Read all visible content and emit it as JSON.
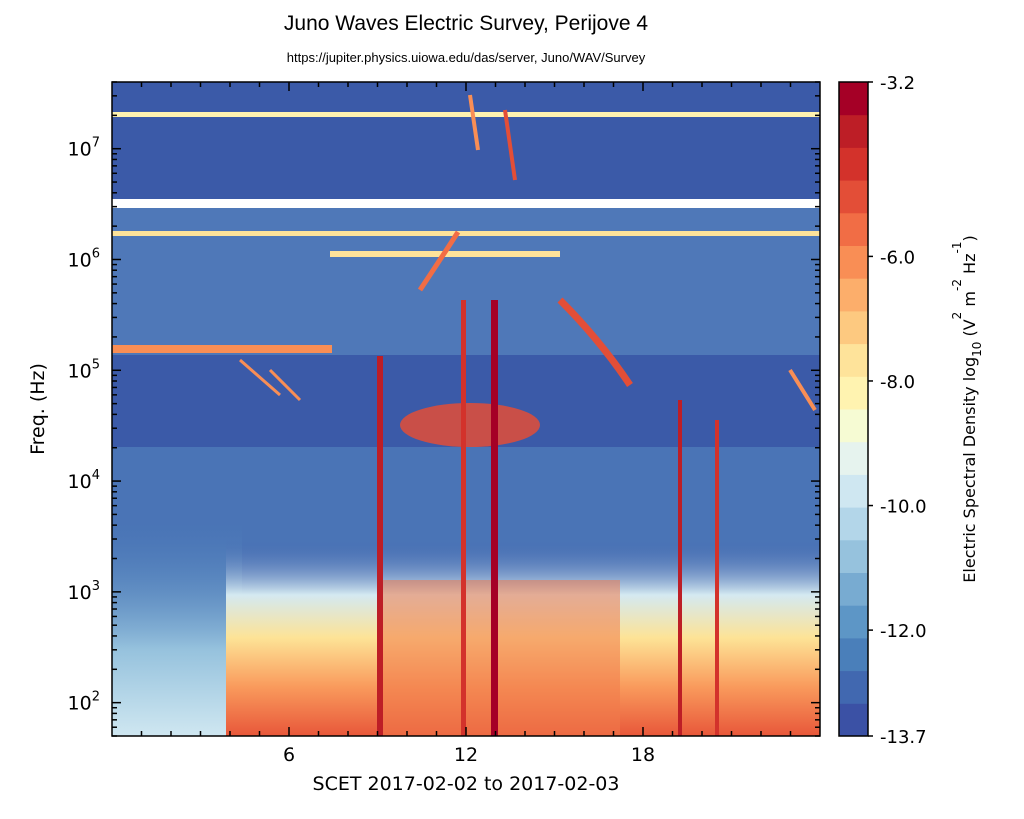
{
  "chart_data": {
    "type": "heatmap",
    "title": "Juno Waves Electric Survey, Perijove 4",
    "subtitle": "https://jupiter.physics.uiowa.edu/das/server, Juno/WAV/Survey",
    "xlabel": "SCET 2017-02-02 to 2017-02-03",
    "ylabel": "Freq. (Hz)",
    "x_unit": "hours",
    "xlim": [
      0,
      24
    ],
    "x_ticks": [
      6,
      12,
      18
    ],
    "y_scale": "log",
    "ylim": [
      50,
      40000000
    ],
    "y_ticks": [
      {
        "value": 100,
        "label": "10",
        "exp": "2"
      },
      {
        "value": 1000,
        "label": "10",
        "exp": "3"
      },
      {
        "value": 10000,
        "label": "10",
        "exp": "4"
      },
      {
        "value": 100000,
        "label": "10",
        "exp": "5"
      },
      {
        "value": 1000000,
        "label": "10",
        "exp": "6"
      },
      {
        "value": 10000000,
        "label": "10",
        "exp": "7"
      }
    ],
    "colorbar": {
      "label": "Electric Spectral Density log",
      "label_sub": "10",
      "unit_parts": [
        {
          "text": " (V"
        },
        {
          "sup": "2"
        },
        {
          "text": " m"
        },
        {
          "sup": "-2"
        },
        {
          "text": " Hz"
        },
        {
          "sup": "-1"
        },
        {
          "text": ")"
        }
      ],
      "min": -13.7,
      "max": -3.2,
      "tick_values": [
        -3.2,
        -6.0,
        -8.0,
        -10.0,
        -12.0,
        -13.7
      ],
      "tick_labels": [
        "-3.2",
        "-6.0",
        "-8.0",
        "-10.0",
        "-12.0",
        "-13.7"
      ],
      "colormap": "RdYlBu_r",
      "colors_low_to_high": [
        "#3b51a5",
        "#4168b0",
        "#4a7fba",
        "#5d96c6",
        "#78abd1",
        "#96c2dd",
        "#b3d6e9",
        "#cfe7f1",
        "#e6f3ee",
        "#f6fbd3",
        "#fff3b0",
        "#fee39a",
        "#fdc980",
        "#fcae6b",
        "#f98e55",
        "#f16d45",
        "#e34e37",
        "#d3322b",
        "#bd1e26",
        "#a50026"
      ]
    },
    "features": [
      {
        "name": "broadband low-frequency emission",
        "x_range": [
          4.5,
          24
        ],
        "f_range": [
          50,
          2000
        ]
      },
      {
        "name": "intense vertical bursts",
        "x": [
          9.0,
          12.0,
          13.0,
          19.4,
          20.8
        ]
      },
      {
        "name": "narrowband band near 3.4e5 Hz",
        "x_range": [
          0,
          7.5
        ],
        "f": 340000
      },
      {
        "name": "steady band near 1.7e6 Hz",
        "x_range": [
          0,
          24
        ],
        "f": 1700000
      },
      {
        "name": "steady band near 2.2e7 Hz",
        "x_range": [
          0,
          24
        ],
        "f": 22000000
      },
      {
        "name": "data gap",
        "f_range": [
          2900000,
          3300000
        ]
      }
    ]
  }
}
